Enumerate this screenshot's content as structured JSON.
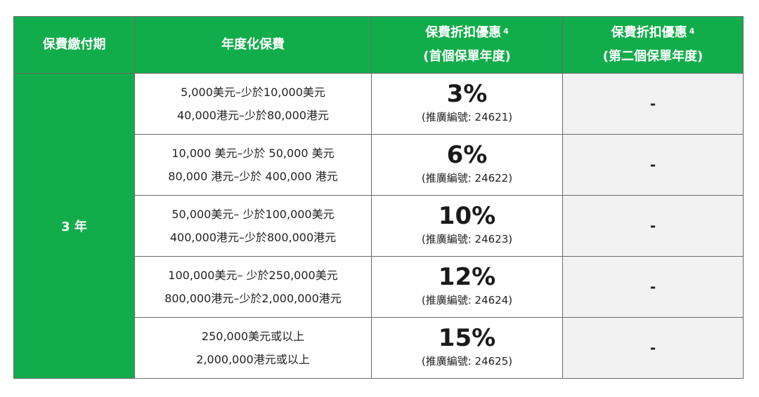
{
  "headers": {
    "period": "保費繳付期",
    "annualized_premium": "年度化保費",
    "discount_first": {
      "line1": "保費折扣優惠",
      "sup": "4",
      "line2": "(首個保單年度)"
    },
    "discount_second": {
      "line1": "保費折扣優惠",
      "sup": "4",
      "line2": "(第二個保單年度)"
    }
  },
  "period_value": "3 年",
  "rows": [
    {
      "range_line1": "5,000美元–少於10,000美元",
      "range_line2": "40,000港元–少於80,000港元",
      "discount": "3%",
      "code": "(推廣編號: 24621)",
      "second_year": "-"
    },
    {
      "range_line1": "10,000 美元–少於 50,000 美元",
      "range_line2": "80,000 港元–少於 400,000 港元",
      "discount": "6%",
      "code": "(推廣編號: 24622)",
      "second_year": "-"
    },
    {
      "range_line1": "50,000美元– 少於100,000美元",
      "range_line2": "400,000港元–少於800,000港元",
      "discount": "10%",
      "code": "(推廣編號: 24623)",
      "second_year": "-"
    },
    {
      "range_line1": "100,000美元– 少於250,000美元",
      "range_line2": "800,000港元–少於2,000,000港元",
      "discount": "12%",
      "code": "(推廣編號: 24624)",
      "second_year": "-"
    },
    {
      "range_line1": "250,000美元或以上",
      "range_line2": "2,000,000港元或以上",
      "discount": "15%",
      "code": "(推廣編號: 24625)",
      "second_year": "-"
    }
  ],
  "colors": {
    "header_green": "#12ad4b",
    "grey_cell": "#f2f2f2",
    "border": "#6a6a6a"
  }
}
